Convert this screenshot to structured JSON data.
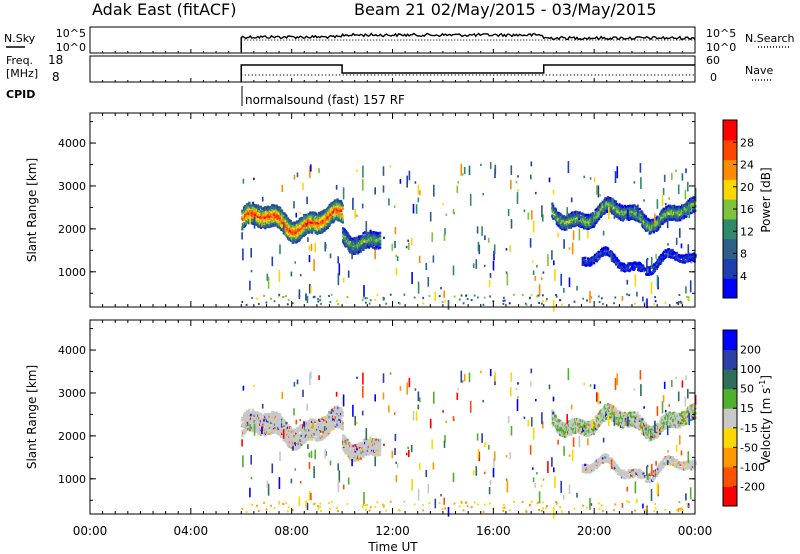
{
  "header": {
    "station": "Adak East (fitACF)",
    "beam_info": "Beam 21 02/May/2015 - 03/May/2015"
  },
  "top_panels": {
    "nsky_label": "N.Sky",
    "nsearch_label": "N.Search",
    "noise_ticks_left": [
      "10^5",
      "10^0"
    ],
    "noise_ticks_right": [
      "10^5",
      "10^0"
    ],
    "freq_label_1": "Freq.",
    "freq_label_2": "[MHz]",
    "freq_ticks": [
      "18",
      "8"
    ],
    "nave_label": "Nave",
    "nave_ticks": [
      "60",
      "0"
    ],
    "cpid_label": "CPID",
    "cpid_text": "normalsound (fast) 157 RF"
  },
  "colors": {
    "power_scale": [
      "#0000ff",
      "#1f3fb0",
      "#2e5f88",
      "#2f8a6a",
      "#7ec23e",
      "#ffd700",
      "#ff8c00",
      "#ff4500",
      "#ff0000"
    ],
    "velocity_scale": [
      "#0000ff",
      "#2a3fa8",
      "#2e6e5a",
      "#4fb02e",
      "#c8c8c8",
      "#ffd700",
      "#ff9900",
      "#ff5000",
      "#ff0000"
    ]
  },
  "chart_data": [
    {
      "type": "heatmap",
      "title": "Power",
      "ylabel": "Slant Range [km]",
      "xlabel": "",
      "y_ticks": [
        "4000",
        "3000",
        "2000",
        "1000"
      ],
      "ylim": [
        180,
        4700
      ],
      "colorbar_label": "Power [dB]",
      "colorbar_ticks": [
        "28",
        "24",
        "20",
        "16",
        "12",
        "8",
        "4"
      ],
      "colorbar_range": [
        0,
        30
      ],
      "echo_bands": [
        {
          "x_start": 6.0,
          "x_end": 10.0,
          "range_center": 2200,
          "width": 450,
          "peak": 26
        },
        {
          "x_start": 10.0,
          "x_end": 11.5,
          "range_center": 1850,
          "width": 350,
          "peak": 14
        },
        {
          "x_start": 18.3,
          "x_end": 24.0,
          "range_center": 2350,
          "width": 300,
          "peak": 16
        },
        {
          "x_start": 19.5,
          "x_end": 24.0,
          "range_center": 1250,
          "width": 150,
          "peak": 6
        }
      ]
    },
    {
      "type": "heatmap",
      "title": "Velocity",
      "ylabel": "Slant Range [km]",
      "xlabel": "Time UT",
      "x_ticks": [
        "00:00",
        "04:00",
        "08:00",
        "12:00",
        "16:00",
        "20:00",
        "00:00"
      ],
      "y_ticks": [
        "4000",
        "3000",
        "2000",
        "1000"
      ],
      "ylim": [
        180,
        4700
      ],
      "colorbar_label": "Velocity [m s",
      "colorbar_label_sup": "-1",
      "colorbar_label_end": "]",
      "colorbar_ticks": [
        "200",
        "100",
        "50",
        "15",
        "-15",
        "-50",
        "-100",
        "-200"
      ],
      "colorbar_range": [
        -250,
        250
      ]
    }
  ]
}
